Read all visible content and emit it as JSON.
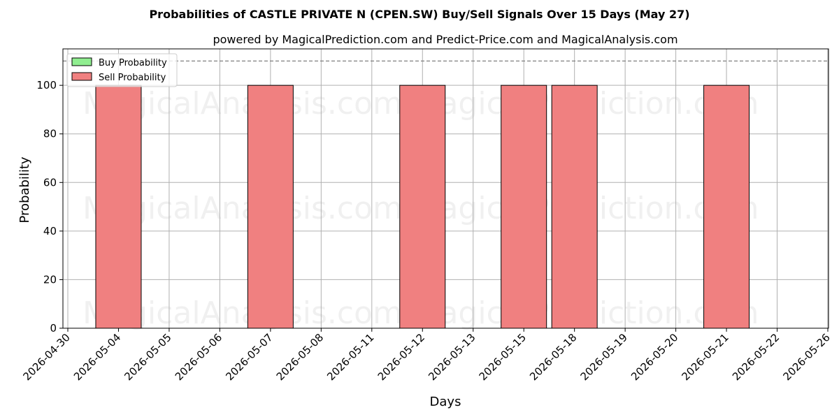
{
  "chart_data": {
    "type": "bar",
    "title": "Probabilities of CASTLE PRIVATE N (CPEN.SW) Buy/Sell Signals Over 15 Days (May 27)",
    "subtitle": "powered by MagicalPrediction.com and Predict-Price.com and MagicalAnalysis.com",
    "xlabel": "Days",
    "ylabel": "Probability",
    "categories": [
      "2026-04-30",
      "2026-05-04",
      "2026-05-05",
      "2026-05-06",
      "2026-05-07",
      "2026-05-08",
      "2026-05-11",
      "2026-05-12",
      "2026-05-13",
      "2026-05-15",
      "2026-05-18",
      "2026-05-19",
      "2026-05-20",
      "2026-05-21",
      "2026-05-22",
      "2026-05-26"
    ],
    "sell_bars": [
      {
        "date": "2026-05-04",
        "value": 100
      },
      {
        "date": "2026-05-07",
        "value": 100
      },
      {
        "date": "2026-05-12",
        "value": 100
      },
      {
        "date": "2026-05-15",
        "value": 100
      },
      {
        "date": "2026-05-18",
        "value": 100
      },
      {
        "date": "2026-05-21",
        "value": 100
      }
    ],
    "buy_bars": [],
    "series": [
      {
        "name": "Buy Probability",
        "color": "#90ee90"
      },
      {
        "name": "Sell Probability",
        "color": "#f08080"
      }
    ],
    "yticks": [
      0,
      20,
      40,
      60,
      80,
      100
    ],
    "ylim": [
      0,
      115
    ],
    "reference_line": 110,
    "grid": true,
    "legend_position": "top-left",
    "watermarks": [
      "MagicalAnalysis.com",
      "MagicalPrediction.com",
      "MagicalAnalysis.com",
      "MagicalPrediction.com",
      "MagicalAnalysis.com",
      "MagicalPrediction.com"
    ]
  }
}
